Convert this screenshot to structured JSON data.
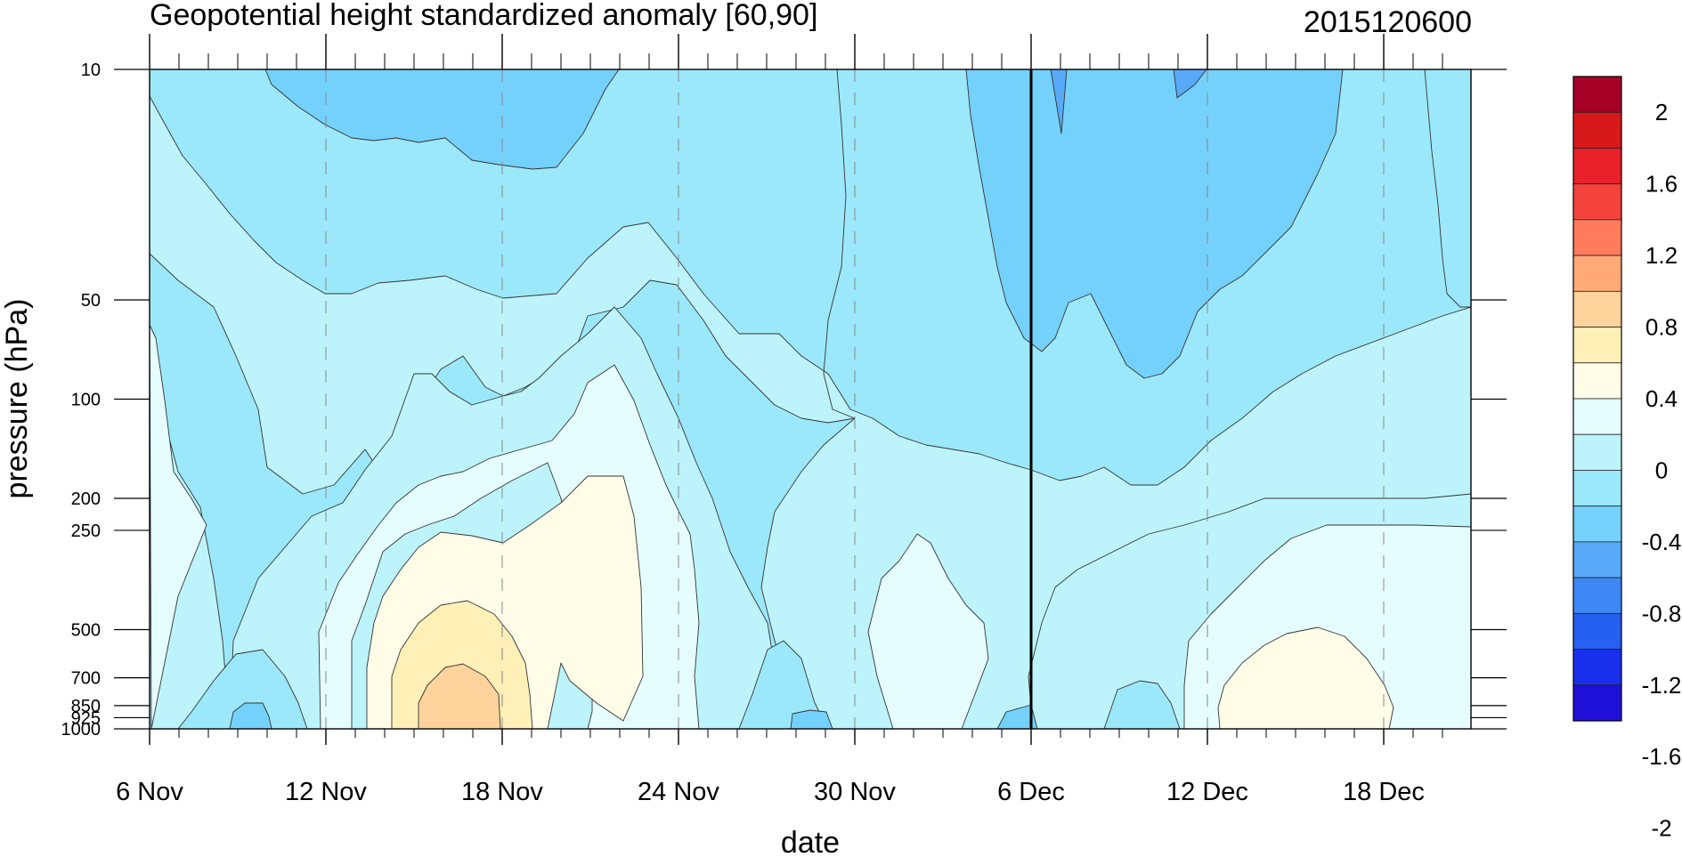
{
  "chart_data": {
    "type": "heatmap",
    "title": "Geopotential height standardized anomaly [60,90]",
    "run_label": "2015120600",
    "xlabel": "date",
    "ylabel": "pressure (hPa)",
    "x_ticks": [
      "6 Nov",
      "12 Nov",
      "18 Nov",
      "24 Nov",
      "30 Nov",
      "6 Dec",
      "12 Dec",
      "18 Dec"
    ],
    "x_tick_days": [
      0,
      6,
      12,
      18,
      24,
      30,
      36,
      42
    ],
    "x_range_days": [
      0,
      45
    ],
    "y_ticks": [
      "10",
      "50",
      "100",
      "200",
      "250",
      "500",
      "700",
      "850",
      "925",
      "1000"
    ],
    "y_tick_values": [
      10,
      50,
      100,
      200,
      250,
      500,
      700,
      850,
      925,
      1000
    ],
    "y_range": [
      10,
      1000
    ],
    "analysis_line_day": 30,
    "grid_x_dashed": true,
    "colorbar": {
      "labels": [
        "2",
        "1.6",
        "1.2",
        "0.8",
        "0.4",
        "0",
        "-0.4",
        "-0.8",
        "-1.2",
        "-1.6",
        "-2"
      ],
      "colors": [
        "#a50026",
        "#d7191c",
        "#e8212a",
        "#f4433d",
        "#ff7b5c",
        "#ffaa77",
        "#ffd39b",
        "#fff0b8",
        "#fffde8",
        "#e6fdff",
        "#bdf4fb",
        "#9ce8fb",
        "#74d1fb",
        "#58aaf8",
        "#3d88f5",
        "#2660f1",
        "#1830ec",
        "#1f10d8"
      ]
    },
    "fields": {
      "cold_band_minus_0_4": "#bdf4fb",
      "cold_band_minus_0_8": "#9ce8fb",
      "cold_band_minus_1_2": "#74d1fb",
      "cold_band_minus_1_6": "#58aaf8",
      "neutral_cold": "#e6fdff",
      "neutral_warm": "#fffde8",
      "warm_0_4": "#fff0b8",
      "warm_0_8": "#ffd39b"
    }
  }
}
